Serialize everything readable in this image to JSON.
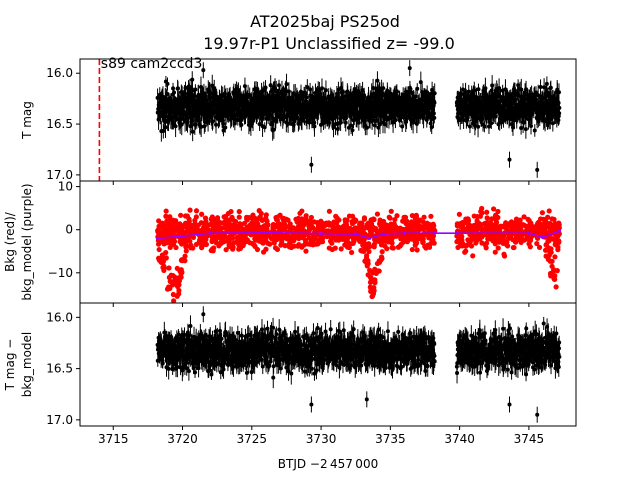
{
  "figure": {
    "title_line1": "AT2025baj  PS25od",
    "title_line2": "19.97r-P1 Unclassified z= -99.0",
    "xlabel": "BTJD −2 457 000"
  },
  "chart_data": [
    {
      "type": "scatter",
      "panel": "top",
      "ylabel": "T mag",
      "xlim": [
        3712.6,
        3748.4
      ],
      "ylim": [
        17.06,
        15.86
      ],
      "inverted_y": true,
      "yticks": [
        16.0,
        16.5,
        17.0
      ],
      "ytick_labels": [
        "16.0",
        "16.5",
        "17.0"
      ],
      "series": [
        {
          "color": "#000000",
          "segments": [
            [
              3718.2,
              3738.2
            ],
            [
              3739.8,
              3747.2
            ]
          ],
          "median": 16.33,
          "scatter_range": [
            16.1,
            16.55
          ],
          "extremes": [
            [
              3721.5,
              15.97
            ],
            [
              3729.3,
              16.9
            ],
            [
              3743.6,
              16.85
            ],
            [
              3745.6,
              16.95
            ],
            [
              3736.4,
              15.95
            ]
          ]
        }
      ],
      "vline": {
        "x": 3714.0,
        "color": "#ff0000",
        "style": "dashed"
      },
      "annotation": {
        "text": "s89 cam2ccd3",
        "x": 3714.1,
        "y": 15.93
      }
    },
    {
      "type": "scatter",
      "panel": "middle",
      "ylabel_line1": "Bkg (red)/",
      "ylabel_line2": "bkg_model (purple)",
      "xlim": [
        3712.6,
        3748.4
      ],
      "ylim": [
        -17.0,
        11.3
      ],
      "yticks": [
        10,
        0,
        -10
      ],
      "ytick_labels": [
        "10",
        "0",
        "−10"
      ],
      "series": [
        {
          "color": "#ff0000",
          "segments": [
            [
              3718.2,
              3738.2
            ],
            [
              3739.8,
              3747.2
            ]
          ],
          "band": [
            -6,
            5
          ],
          "dips": [
            {
              "x": [
                3718.2,
                3718.8,
                3719.4,
                3719.8,
                3720.3
              ],
              "y": [
                -5,
                -12,
                -16,
                -14,
                -4
              ]
            },
            {
              "x": [
                3732.8,
                3733.3,
                3733.7,
                3734.1,
                3734.6
              ],
              "y": [
                -4,
                -10,
                -16,
                -12,
                -3
              ]
            },
            {
              "x": [
                3746.0,
                3746.6,
                3747.1
              ],
              "y": [
                -4,
                -10,
                -14
              ]
            }
          ]
        },
        {
          "color": "#9900ff",
          "x": [
            3718.2,
            3720.0,
            3722.0,
            3726.0,
            3730.0,
            3732.5,
            3733.5,
            3734.5,
            3736.0,
            3738.2,
            3739.8,
            3745.0,
            3746.0,
            3747.2
          ],
          "y": [
            -2.0,
            -1.5,
            -0.8,
            -0.7,
            -0.9,
            -1.0,
            -2.0,
            -1.0,
            -0.8,
            -0.8,
            -0.8,
            -0.8,
            -1.8,
            -0.3
          ]
        }
      ]
    },
    {
      "type": "scatter",
      "panel": "bottom",
      "ylabel_line1": "T mag −",
      "ylabel_line2": "bkg_model",
      "xlim": [
        3712.6,
        3748.4
      ],
      "ylim": [
        17.06,
        15.86
      ],
      "inverted_y": true,
      "yticks": [
        16.0,
        16.5,
        17.0
      ],
      "ytick_labels": [
        "16.0",
        "16.5",
        "17.0"
      ],
      "xticks": [
        3715,
        3720,
        3725,
        3730,
        3735,
        3740,
        3745
      ],
      "xtick_labels": [
        "3715",
        "3720",
        "3725",
        "3730",
        "3735",
        "3740",
        "3745"
      ],
      "series": [
        {
          "color": "#000000",
          "segments": [
            [
              3718.2,
              3738.2
            ],
            [
              3739.8,
              3747.2
            ]
          ],
          "median": 16.33,
          "scatter_range": [
            16.1,
            16.55
          ],
          "extremes": [
            [
              3721.5,
              15.97
            ],
            [
              3729.3,
              16.85
            ],
            [
              3743.6,
              16.85
            ],
            [
              3745.6,
              16.95
            ],
            [
              3733.3,
              16.8
            ]
          ]
        }
      ]
    }
  ]
}
